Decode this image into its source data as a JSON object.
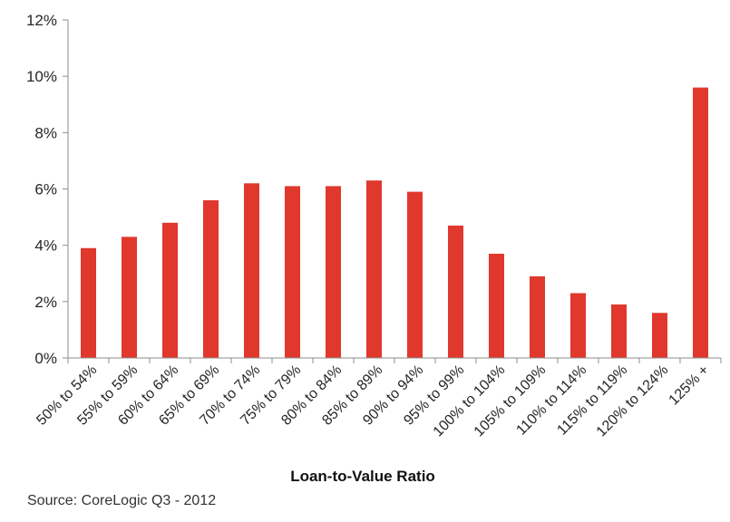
{
  "chart_data": {
    "type": "bar",
    "categories": [
      "50% to 54%",
      "55% to 59%",
      "60% to 64%",
      "65% to 69%",
      "70% to 74%",
      "75% to 79%",
      "80% to 84%",
      "85% to 89%",
      "90% to 94%",
      "95% to 99%",
      "100% to 104%",
      "105% to 109%",
      "110% to 114%",
      "115% to 119%",
      "120% to 124%",
      "125% +"
    ],
    "values": [
      3.9,
      4.3,
      4.8,
      5.6,
      6.2,
      6.1,
      6.1,
      6.3,
      5.9,
      4.7,
      3.7,
      2.9,
      2.3,
      1.9,
      1.6,
      9.6
    ],
    "title": "",
    "xlabel": "Loan-to-Value Ratio",
    "ylabel": "",
    "ylim": [
      0,
      12
    ],
    "yticks": [
      "0%",
      "2%",
      "4%",
      "6%",
      "8%",
      "10%",
      "12%"
    ],
    "grid": false,
    "legend": "none",
    "bar_color": "#e0382d"
  },
  "source": "Source: CoreLogic Q3 - 2012"
}
